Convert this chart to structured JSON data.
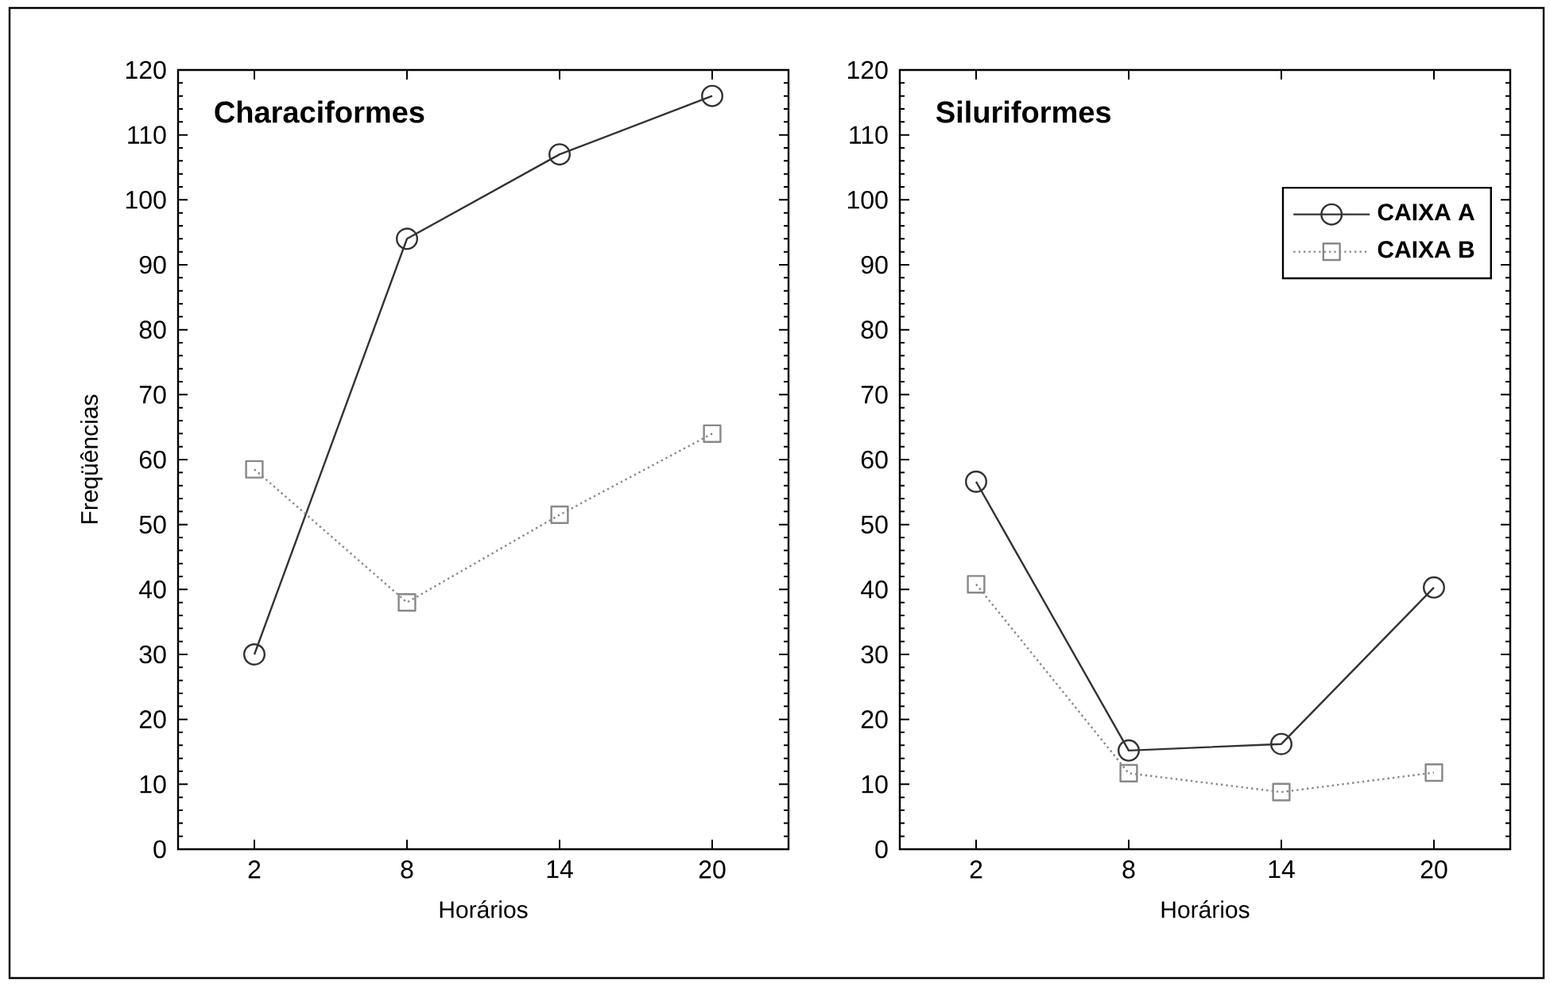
{
  "chart_data": [
    {
      "type": "line",
      "title": "Characiformes",
      "xlabel": "Horários",
      "ylabel": "Freqüências",
      "x": [
        2,
        8,
        14,
        20
      ],
      "xlim": [
        -1,
        23
      ],
      "xticks": [
        2,
        8,
        14,
        20
      ],
      "ylim": [
        0,
        120
      ],
      "yticks": [
        0,
        10,
        20,
        30,
        40,
        50,
        60,
        70,
        80,
        90,
        100,
        110,
        120
      ],
      "grid": false,
      "legend": false,
      "series": [
        {
          "color": "#333333",
          "marker": "circle",
          "line_style": "solid",
          "values": [
            30,
            94,
            107,
            116
          ]
        },
        {
          "color": "#888888",
          "marker": "square",
          "line_style": "dotted",
          "values": [
            58.5,
            38,
            51.5,
            64
          ]
        }
      ]
    },
    {
      "type": "line",
      "title": "Siluriformes",
      "xlabel": "Horários",
      "x": [
        2,
        8,
        14,
        20
      ],
      "xlim": [
        -1,
        23
      ],
      "xticks": [
        2,
        8,
        14,
        20
      ],
      "ylim": [
        0,
        120
      ],
      "yticks": [
        0,
        10,
        20,
        30,
        40,
        50,
        60,
        70,
        80,
        90,
        100,
        110,
        120
      ],
      "grid": false,
      "legend": "top right",
      "series": [
        {
          "name": "CAIXA A",
          "color": "#333333",
          "marker": "circle",
          "line_style": "solid",
          "values": [
            56.6,
            15.2,
            16.2,
            40.3
          ]
        },
        {
          "name": "CAIXA B",
          "color": "#888888",
          "marker": "square",
          "line_style": "dotted",
          "values": [
            40.8,
            11.7,
            8.8,
            11.8
          ]
        }
      ]
    }
  ]
}
